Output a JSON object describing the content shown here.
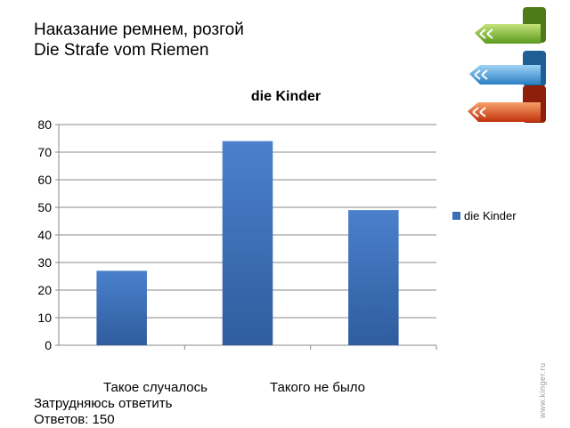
{
  "heading": {
    "line1": "Наказание ремнем, розгой",
    "line2": "Die Strafe vom Riemen"
  },
  "chart_data": {
    "type": "bar",
    "title": "die Kinder",
    "categories": [
      "Такое случалось",
      "Такого не было",
      "Затрудняюсь ответить"
    ],
    "series": [
      {
        "name": "die Kinder",
        "values": [
          27,
          74,
          49
        ],
        "color": "#3a6eb5"
      }
    ],
    "ylim": [
      0,
      80
    ],
    "yticks": [
      0,
      10,
      20,
      30,
      40,
      50,
      60,
      70,
      80
    ],
    "grid": true,
    "legend": "right"
  },
  "footer": {
    "responses": "Ответов: 150"
  },
  "decor": {
    "arrow_colors": [
      "#8cc63f",
      "#4aa3df",
      "#e8501e"
    ]
  }
}
